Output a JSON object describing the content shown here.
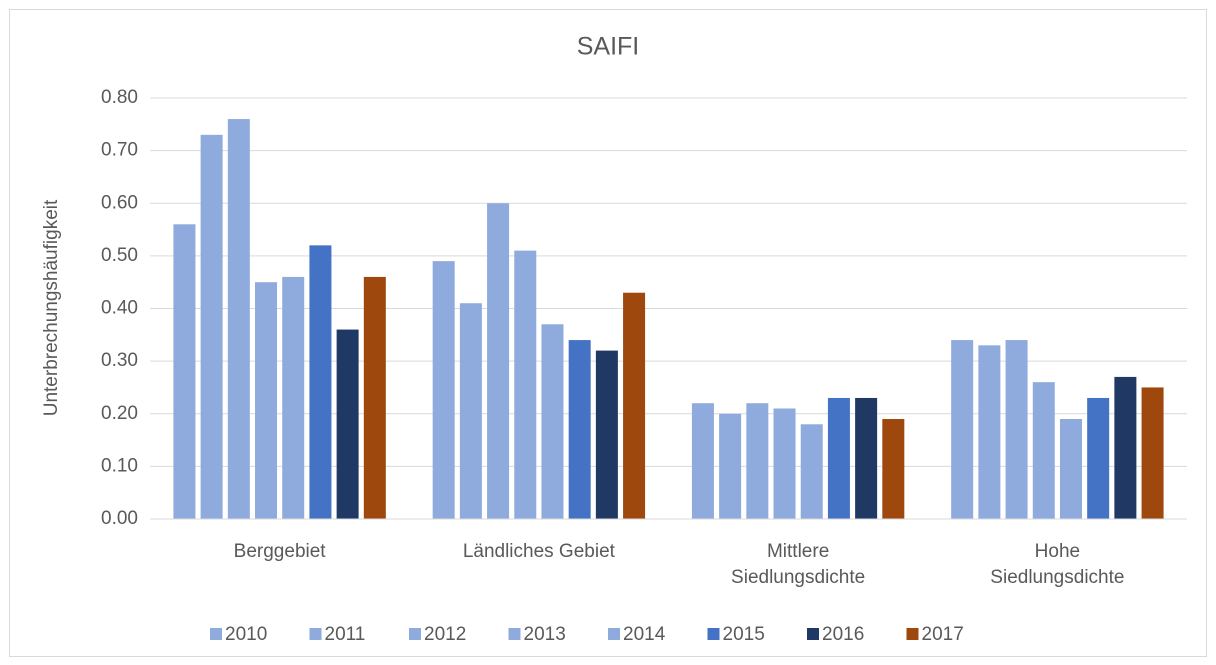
{
  "chart_data": {
    "type": "bar",
    "title": "SAIFI",
    "y_label": "Unterbrechungshäufigkeit",
    "categories": [
      "Berggebiet",
      "Ländliches Gebiet",
      "Mittlere Siedlungsdichte",
      "Hohe Siedlungsdichte"
    ],
    "series": [
      {
        "name": "2010",
        "color": "#8faadc",
        "values": [
          0.56,
          0.49,
          0.22,
          0.34
        ]
      },
      {
        "name": "2011",
        "color": "#8faadc",
        "values": [
          0.73,
          0.41,
          0.2,
          0.33
        ]
      },
      {
        "name": "2012",
        "color": "#8faadc",
        "values": [
          0.76,
          0.6,
          0.22,
          0.34
        ]
      },
      {
        "name": "2013",
        "color": "#8faadc",
        "values": [
          0.45,
          0.51,
          0.21,
          0.26
        ]
      },
      {
        "name": "2014",
        "color": "#8faadc",
        "values": [
          0.46,
          0.37,
          0.18,
          0.19
        ]
      },
      {
        "name": "2015",
        "color": "#4472c4",
        "values": [
          0.52,
          0.34,
          0.23,
          0.23
        ]
      },
      {
        "name": "2016",
        "color": "#203864",
        "values": [
          0.36,
          0.32,
          0.23,
          0.27
        ]
      },
      {
        "name": "2017",
        "color": "#9e480e",
        "values": [
          0.46,
          0.43,
          0.19,
          0.25
        ]
      }
    ],
    "ylim": [
      0,
      0.8
    ],
    "yticks": [
      {
        "value": 0,
        "label": "0.00"
      },
      {
        "value": 0.1,
        "label": "0.10"
      },
      {
        "value": 0.2,
        "label": "0.20"
      },
      {
        "value": 0.3,
        "label": "0.30"
      },
      {
        "value": 0.4,
        "label": "0.40"
      },
      {
        "value": 0.5,
        "label": "0.50"
      },
      {
        "value": 0.6,
        "label": "0.60"
      },
      {
        "value": 0.7,
        "label": "0.70"
      },
      {
        "value": 0.8,
        "label": "0.80"
      }
    ],
    "grid": true,
    "legend": "bottom"
  }
}
